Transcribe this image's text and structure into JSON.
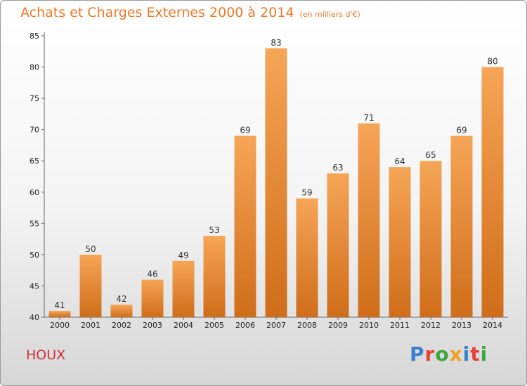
{
  "title": "Achats et Charges Externes 2000 à 2014",
  "subtitle": "(en milliers d'€)",
  "commune": "HOUX",
  "logo_text": "Proxiti",
  "colors": {
    "title": "#e87a2e",
    "commune": "#d2303c",
    "bar_light": "#f6a556",
    "bar_dark": "#cf6d1a",
    "logo": [
      "#3a7fd0",
      "#e8413c",
      "#3ea63e",
      "#f0a020",
      "#3a7fd0",
      "#e8413c",
      "#3ea63e"
    ]
  },
  "chart_data": {
    "type": "bar",
    "title": "Achats et Charges Externes 2000 à 2014",
    "subtitle": "(en milliers d'€)",
    "categories": [
      "2000",
      "2001",
      "2002",
      "2003",
      "2004",
      "2005",
      "2006",
      "2007",
      "2008",
      "2009",
      "2010",
      "2011",
      "2012",
      "2013",
      "2014"
    ],
    "values": [
      41,
      50,
      42,
      46,
      49,
      53,
      69,
      83,
      59,
      63,
      71,
      64,
      65,
      69,
      80
    ],
    "ylim": [
      40,
      85
    ],
    "yticks": [
      40,
      45,
      50,
      55,
      60,
      65,
      70,
      75,
      80,
      85
    ],
    "grid": false,
    "xlabel": "",
    "ylabel": ""
  }
}
